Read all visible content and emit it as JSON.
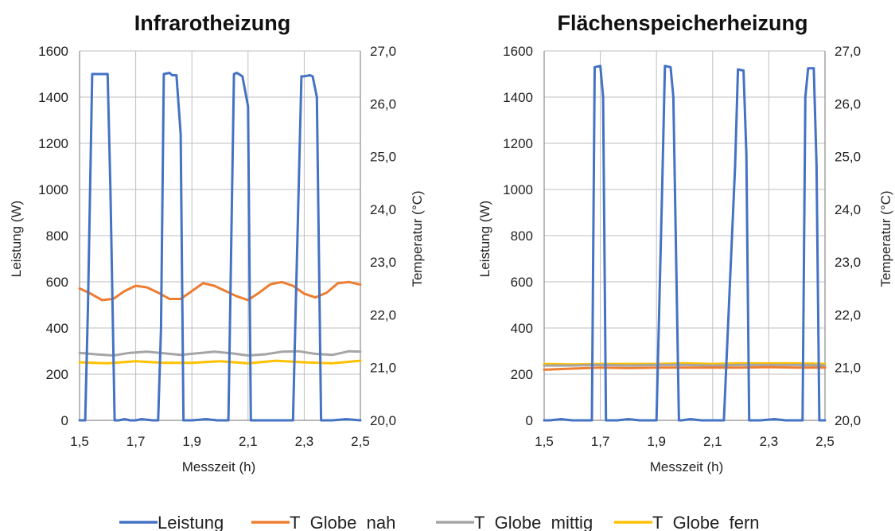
{
  "colors": {
    "Leistung": "#4472C4",
    "T_Globe_nah": "#ED7D31",
    "T_Globe_mittig": "#A5A5A5",
    "T_Globe_fern": "#FFC000",
    "grid": "#bfbfbf",
    "axis": "#8c8c8c"
  },
  "legend": {
    "position": "bottom",
    "items": [
      {
        "key": "Leistung",
        "label": "Leistung"
      },
      {
        "key": "T_Globe_nah",
        "label": "T_Globe_nah"
      },
      {
        "key": "T_Globe_mittig",
        "label": "T_Globe_mittig"
      },
      {
        "key": "T_Globe_fern",
        "label": "T_Globe_fern"
      }
    ]
  },
  "chart_data": [
    {
      "type": "line",
      "title": "Infrarotheizung",
      "xlabel": "Messzeit (h)",
      "ylabel": "Leistung (W)",
      "y2label": "Temperatur (°C)",
      "xlim": [
        1.5,
        2.5
      ],
      "ylim": [
        0,
        1600
      ],
      "y2lim": [
        20.0,
        27.0
      ],
      "xticks": [
        "1,5",
        "1,7",
        "1,9",
        "2,1",
        "2,3",
        "2,5"
      ],
      "yticks": [
        "0",
        "200",
        "400",
        "600",
        "800",
        "1000",
        "1200",
        "1400",
        "1600"
      ],
      "y2ticks": [
        "20,0",
        "21,0",
        "22,0",
        "23,0",
        "24,0",
        "25,0",
        "26,0",
        "27,0"
      ],
      "grid": true,
      "series": [
        {
          "name": "Leistung",
          "axis": "left",
          "x": [
            1.5,
            1.52,
            1.53,
            1.545,
            1.56,
            1.58,
            1.6,
            1.61,
            1.625,
            1.64,
            1.66,
            1.68,
            1.7,
            1.72,
            1.76,
            1.78,
            1.79,
            1.8,
            1.82,
            1.83,
            1.845,
            1.86,
            1.87,
            1.9,
            1.95,
            1.99,
            2.0,
            2.03,
            2.05,
            2.06,
            2.08,
            2.1,
            2.11,
            2.12,
            2.2,
            2.26,
            2.27,
            2.29,
            2.3,
            2.32,
            2.33,
            2.345,
            2.36,
            2.4,
            2.45,
            2.5
          ],
          "values": [
            0,
            0,
            500,
            1500,
            1500,
            1500,
            1500,
            1000,
            0,
            0,
            5,
            0,
            0,
            5,
            0,
            0,
            400,
            1500,
            1505,
            1495,
            1495,
            1240,
            0,
            0,
            5,
            0,
            0,
            0,
            1500,
            1505,
            1490,
            1360,
            0,
            0,
            0,
            0,
            500,
            1490,
            1490,
            1495,
            1490,
            1400,
            0,
            0,
            5,
            0
          ]
        },
        {
          "name": "T_Globe_nah",
          "axis": "right",
          "x": [
            1.5,
            1.54,
            1.58,
            1.62,
            1.66,
            1.7,
            1.74,
            1.78,
            1.82,
            1.86,
            1.9,
            1.94,
            1.98,
            2.02,
            2.06,
            2.1,
            2.14,
            2.18,
            2.22,
            2.26,
            2.3,
            2.34,
            2.38,
            2.42,
            2.46,
            2.5
          ],
          "values": [
            22.5,
            22.4,
            22.28,
            22.3,
            22.45,
            22.55,
            22.52,
            22.42,
            22.3,
            22.3,
            22.45,
            22.6,
            22.55,
            22.45,
            22.35,
            22.28,
            22.42,
            22.58,
            22.62,
            22.55,
            22.4,
            22.33,
            22.42,
            22.6,
            22.62,
            22.57
          ]
        },
        {
          "name": "T_Globe_mittig",
          "axis": "right",
          "x": [
            1.5,
            1.56,
            1.62,
            1.68,
            1.74,
            1.8,
            1.86,
            1.92,
            1.98,
            2.04,
            2.1,
            2.16,
            2.22,
            2.28,
            2.34,
            2.4,
            2.46,
            2.5
          ],
          "values": [
            21.28,
            21.25,
            21.23,
            21.28,
            21.3,
            21.27,
            21.24,
            21.27,
            21.3,
            21.27,
            21.23,
            21.25,
            21.3,
            21.31,
            21.26,
            21.24,
            21.31,
            21.3
          ]
        },
        {
          "name": "T_Globe_fern",
          "axis": "right",
          "x": [
            1.5,
            1.6,
            1.7,
            1.8,
            1.9,
            2.0,
            2.1,
            2.2,
            2.3,
            2.4,
            2.5
          ],
          "values": [
            21.1,
            21.08,
            21.12,
            21.09,
            21.09,
            21.12,
            21.08,
            21.13,
            21.1,
            21.08,
            21.13
          ]
        }
      ]
    },
    {
      "type": "line",
      "title": "Flächenspeicherheizung",
      "xlabel": "Messzeit (h)",
      "ylabel": "Leistung (W)",
      "y2label": "Temperatur (°C)",
      "xlim": [
        1.5,
        2.5
      ],
      "ylim": [
        0,
        1600
      ],
      "y2lim": [
        20.0,
        27.0
      ],
      "xticks": [
        "1,5",
        "1,7",
        "1,9",
        "2,1",
        "2,3",
        "2,5"
      ],
      "yticks": [
        "0",
        "200",
        "400",
        "600",
        "800",
        "1000",
        "1200",
        "1400",
        "1600"
      ],
      "y2ticks": [
        "20,0",
        "21,0",
        "22,0",
        "23,0",
        "24,0",
        "25,0",
        "26,0",
        "27,0"
      ],
      "grid": true,
      "series": [
        {
          "name": "Leistung",
          "axis": "left",
          "x": [
            1.5,
            1.52,
            1.56,
            1.6,
            1.64,
            1.67,
            1.68,
            1.7,
            1.71,
            1.72,
            1.76,
            1.8,
            1.84,
            1.88,
            1.9,
            1.92,
            1.93,
            1.95,
            1.96,
            1.98,
            1.99,
            2.02,
            2.06,
            2.1,
            2.14,
            2.18,
            2.19,
            2.21,
            2.22,
            2.23,
            2.27,
            2.32,
            2.36,
            2.4,
            2.42,
            2.43,
            2.44,
            2.46,
            2.47,
            2.48,
            2.49,
            2.5
          ],
          "values": [
            0,
            0,
            5,
            0,
            0,
            0,
            1530,
            1535,
            1400,
            0,
            0,
            5,
            0,
            0,
            0,
            1000,
            1535,
            1530,
            1400,
            0,
            0,
            5,
            0,
            0,
            0,
            1100,
            1520,
            1515,
            1150,
            0,
            0,
            5,
            0,
            0,
            0,
            1400,
            1525,
            1525,
            1100,
            0,
            0,
            0
          ]
        },
        {
          "name": "T_Globe_nah",
          "axis": "right",
          "x": [
            1.5,
            1.6,
            1.7,
            1.8,
            1.9,
            2.0,
            2.1,
            2.2,
            2.3,
            2.4,
            2.5
          ],
          "values": [
            20.96,
            20.98,
            21.0,
            20.99,
            21.0,
            21.0,
            21.0,
            21.0,
            21.01,
            21.0,
            21.0
          ]
        },
        {
          "name": "T_Globe_mittig",
          "axis": "right",
          "x": [
            1.5,
            1.6,
            1.7,
            1.8,
            1.9,
            2.0,
            2.1,
            2.2,
            2.3,
            2.4,
            2.5
          ],
          "values": [
            21.04,
            21.04,
            21.05,
            21.04,
            21.05,
            21.05,
            21.04,
            21.05,
            21.05,
            21.05,
            21.04
          ]
        },
        {
          "name": "T_Globe_fern",
          "axis": "right",
          "x": [
            1.5,
            1.6,
            1.7,
            1.8,
            1.9,
            2.0,
            2.1,
            2.2,
            2.3,
            2.4,
            2.5
          ],
          "values": [
            21.07,
            21.06,
            21.07,
            21.07,
            21.07,
            21.08,
            21.07,
            21.08,
            21.08,
            21.08,
            21.07
          ]
        }
      ]
    }
  ]
}
